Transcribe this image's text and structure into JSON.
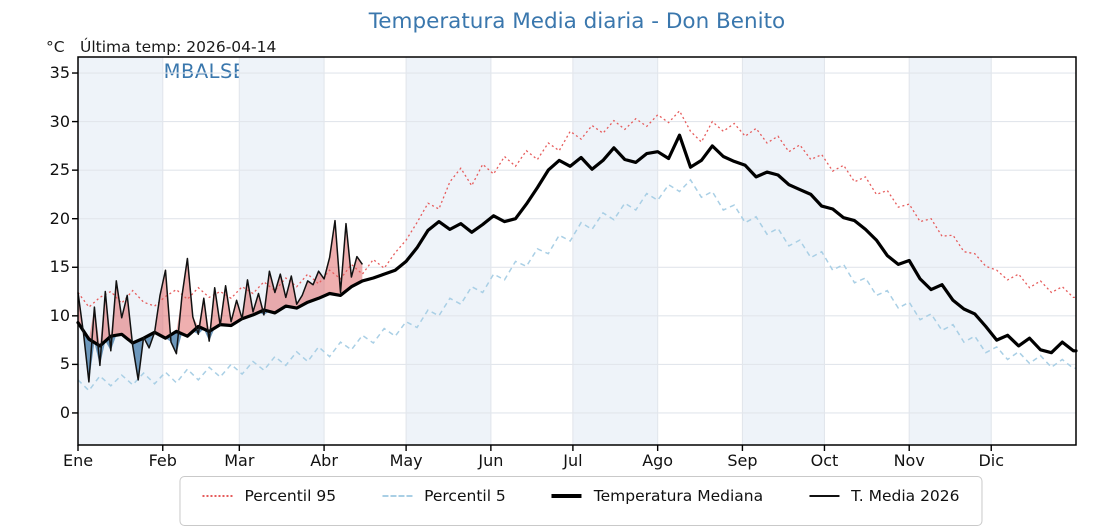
{
  "title": "Temperatura Media diaria - Don Benito",
  "y_axis_unit": "°C",
  "annotation": "Última temp: 2026-04-14",
  "watermark": "WWW.EMBALSES.NET",
  "colors": {
    "accent_blue": "#3a77ad",
    "p95_red": "#e65c5c",
    "p5_blue": "#a9cfe5",
    "median_black": "#000000",
    "t2026_black": "#111111",
    "fill_above": "#e06060",
    "fill_below": "#5d8db5",
    "band": "#eef3f9",
    "grid": "#e2e6ec",
    "axis": "#000000"
  },
  "legend": {
    "items": [
      {
        "label": "Percentil 95",
        "style": "dotted",
        "weight": 2
      },
      {
        "label": "Percentil 5",
        "style": "dashed",
        "weight": 2
      },
      {
        "label": "Temperatura Mediana",
        "style": "solid",
        "weight": 4
      },
      {
        "label": "T. Media 2026",
        "style": "solid",
        "weight": 2
      }
    ]
  },
  "chart_data": {
    "type": "line",
    "title": "Temperatura Media diaria - Don Benito",
    "ylabel": "°C",
    "x_unit": "day_of_year",
    "ylim": [
      -3.3,
      36.65
    ],
    "yticks": [
      0,
      5,
      10,
      15,
      20,
      25,
      30,
      35
    ],
    "grid": true,
    "legend_position": "bottom",
    "months": [
      "Ene",
      "Feb",
      "Mar",
      "Abr",
      "May",
      "Jun",
      "Jul",
      "Ago",
      "Sep",
      "Oct",
      "Nov",
      "Dic"
    ],
    "month_start_days": [
      0,
      31,
      59,
      90,
      120,
      151,
      181,
      212,
      243,
      273,
      304,
      334
    ],
    "series": [
      {
        "name": "Percentil 95",
        "x_start": 0,
        "x_step": 4,
        "values": [
          12.4,
          10.9,
          11.9,
          12.5,
          11.3,
          12.6,
          11.4,
          11.0,
          12.0,
          12.7,
          11.7,
          12.9,
          11.9,
          12.5,
          11.8,
          13.0,
          12.3,
          13.5,
          12.6,
          13.9,
          13.0,
          14.3,
          13.3,
          14.7,
          13.8,
          15.3,
          14.3,
          15.8,
          14.9,
          16.5,
          17.8,
          19.6,
          21.6,
          21.0,
          23.8,
          25.2,
          23.4,
          25.6,
          24.6,
          26.4,
          25.4,
          27.0,
          26.1,
          27.8,
          27.0,
          29.0,
          28.2,
          29.6,
          28.8,
          30.1,
          29.2,
          30.3,
          29.5,
          30.7,
          29.9,
          31.1,
          29.0,
          27.9,
          30.0,
          29.0,
          29.8,
          28.5,
          29.3,
          27.8,
          28.5,
          26.9,
          27.6,
          26.1,
          26.6,
          24.9,
          25.5,
          23.8,
          24.3,
          22.5,
          22.9,
          21.2,
          21.5,
          19.7,
          20.0,
          18.2,
          18.3,
          16.6,
          16.4,
          15.1,
          14.7,
          13.7,
          14.3,
          12.9,
          13.6,
          12.4,
          13.0,
          11.9
        ]
      },
      {
        "name": "Percentil 5",
        "x_start": 0,
        "x_step": 4,
        "values": [
          3.4,
          2.3,
          3.8,
          2.8,
          3.9,
          2.9,
          4.1,
          3.0,
          4.2,
          3.1,
          4.5,
          3.4,
          4.7,
          3.7,
          5.0,
          4.0,
          5.3,
          4.4,
          5.8,
          4.9,
          6.3,
          5.3,
          6.8,
          5.8,
          7.3,
          6.5,
          8.0,
          7.2,
          8.7,
          7.9,
          9.4,
          8.8,
          10.6,
          10.0,
          11.8,
          11.2,
          13.0,
          12.4,
          14.3,
          13.7,
          15.6,
          15.1,
          16.9,
          16.4,
          18.3,
          17.7,
          19.6,
          18.9,
          20.6,
          19.9,
          21.6,
          20.9,
          22.6,
          21.9,
          23.5,
          22.8,
          24.0,
          22.2,
          22.8,
          20.9,
          21.4,
          19.6,
          20.2,
          18.4,
          19.0,
          17.2,
          17.8,
          16.0,
          16.6,
          14.7,
          15.3,
          13.4,
          13.9,
          12.1,
          12.6,
          10.8,
          11.4,
          9.6,
          10.2,
          8.5,
          9.1,
          7.3,
          7.9,
          6.2,
          6.8,
          5.5,
          6.3,
          5.1,
          5.9,
          4.7,
          5.5,
          4.6
        ]
      },
      {
        "name": "Temperatura Mediana",
        "x_start": 0,
        "x_step": 4,
        "values": [
          9.3,
          7.6,
          6.9,
          7.9,
          8.1,
          7.2,
          7.7,
          8.3,
          7.7,
          8.4,
          7.9,
          8.9,
          8.4,
          9.1,
          9.0,
          9.7,
          10.1,
          10.6,
          10.3,
          11.0,
          10.8,
          11.4,
          11.8,
          12.3,
          12.1,
          13.0,
          13.6,
          13.9,
          14.3,
          14.7,
          15.6,
          17.0,
          18.8,
          19.7,
          18.9,
          19.5,
          18.6,
          19.4,
          20.3,
          19.7,
          20.0,
          21.5,
          23.2,
          25.0,
          26.0,
          25.4,
          26.3,
          25.1,
          26.0,
          27.3,
          26.1,
          25.8,
          26.7,
          26.9,
          26.2,
          28.6,
          25.3,
          26.0,
          27.5,
          26.4,
          25.9,
          25.5,
          24.3,
          24.8,
          24.5,
          23.5,
          23.0,
          22.5,
          21.3,
          21.0,
          20.1,
          19.8,
          18.9,
          17.8,
          16.2,
          15.3,
          15.7,
          13.8,
          12.7,
          13.2,
          11.6,
          10.7,
          10.2,
          8.9,
          7.5,
          8.0,
          6.9,
          7.7,
          6.5,
          6.2,
          7.3,
          6.4
        ]
      },
      {
        "name": "T. Media 2026",
        "x_start": 0,
        "x_step": 2,
        "values": [
          12.4,
          8.2,
          3.2,
          10.9,
          4.9,
          12.5,
          6.4,
          13.6,
          9.8,
          12.1,
          6.9,
          3.4,
          7.8,
          6.7,
          8.3,
          12.1,
          14.7,
          7.3,
          6.1,
          12.0,
          15.9,
          9.9,
          8.1,
          11.8,
          7.4,
          12.9,
          9.0,
          13.1,
          9.4,
          11.6,
          9.7,
          13.7,
          10.4,
          12.3,
          10.1,
          14.6,
          12.4,
          14.3,
          11.9,
          14.1,
          11.2,
          12.1,
          13.6,
          13.2,
          14.6,
          13.8,
          16.0,
          19.8,
          12.4,
          19.5,
          14.0,
          16.1,
          15.3
        ]
      }
    ]
  }
}
